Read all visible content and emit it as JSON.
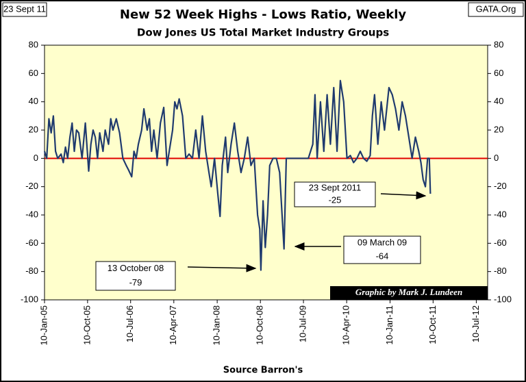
{
  "chart_data": {
    "type": "line",
    "corner_left": "23 Sept 11",
    "corner_right": "GATA.Org",
    "title": "New 52 Week Highs - Lows Ratio, Weekly",
    "subtitle": "Dow Jones US Total Market Industry Groups",
    "x_label": "Source Barron's",
    "credit": "Graphic by Mark J. Lundeen",
    "annotations": [
      {
        "lines": [
          "23 Sept 2011",
          "-25"
        ]
      },
      {
        "lines": [
          "09 March 09",
          "-64"
        ]
      },
      {
        "lines": [
          "13 October 08",
          "-79"
        ]
      }
    ],
    "xlim": [
      "2005-01-10",
      "2012-09-20"
    ],
    "xticks": [
      {
        "value": "2005-01-10",
        "label": "10-Jan-05"
      },
      {
        "value": "2005-10-10",
        "label": "10-Oct-05"
      },
      {
        "value": "2006-07-10",
        "label": "10-Jul-06"
      },
      {
        "value": "2007-04-10",
        "label": "10-Apr-07"
      },
      {
        "value": "2008-01-10",
        "label": "10-Jan-08"
      },
      {
        "value": "2008-10-10",
        "label": "10-Oct-08"
      },
      {
        "value": "2009-07-10",
        "label": "10-Jul-09"
      },
      {
        "value": "2010-04-10",
        "label": "10-Apr-10"
      },
      {
        "value": "2011-01-10",
        "label": "10-Jan-11"
      },
      {
        "value": "2011-10-10",
        "label": "10-Oct-11"
      },
      {
        "value": "2012-07-10",
        "label": "10-Jul-12"
      }
    ],
    "ylim": [
      -100,
      80
    ],
    "yticks": [
      -100,
      -80,
      -60,
      -40,
      -20,
      0,
      20,
      40,
      60,
      80
    ],
    "y2lim": [
      -100,
      80
    ],
    "y2ticks": [
      -100,
      -80,
      -60,
      -40,
      -20,
      0,
      20,
      40,
      60,
      80
    ],
    "zero_line_color": "#e00000",
    "background": "#ffffcc",
    "x": [
      "2005-01-10",
      "2005-01-24",
      "2005-02-07",
      "2005-02-21",
      "2005-03-07",
      "2005-03-21",
      "2005-04-04",
      "2005-04-25",
      "2005-05-09",
      "2005-05-23",
      "2005-06-06",
      "2005-06-20",
      "2005-07-04",
      "2005-07-18",
      "2005-08-01",
      "2005-08-15",
      "2005-09-05",
      "2005-09-26",
      "2005-10-17",
      "2005-10-31",
      "2005-11-14",
      "2005-11-28",
      "2005-12-12",
      "2005-12-26",
      "2006-01-16",
      "2006-01-30",
      "2006-02-20",
      "2006-03-06",
      "2006-03-20",
      "2006-04-10",
      "2006-05-01",
      "2006-05-22",
      "2006-06-12",
      "2006-06-26",
      "2006-07-17",
      "2006-07-31",
      "2006-08-14",
      "2006-08-28",
      "2006-09-18",
      "2006-10-02",
      "2006-10-23",
      "2006-11-06",
      "2006-11-20",
      "2006-12-04",
      "2006-12-25",
      "2007-01-15",
      "2007-02-05",
      "2007-02-26",
      "2007-03-12",
      "2007-04-02",
      "2007-04-16",
      "2007-04-30",
      "2007-05-14",
      "2007-06-04",
      "2007-06-25",
      "2007-07-16",
      "2007-08-06",
      "2007-08-27",
      "2007-09-17",
      "2007-10-08",
      "2007-10-29",
      "2007-11-19",
      "2007-12-03",
      "2007-12-24",
      "2008-01-14",
      "2008-01-28",
      "2008-02-11",
      "2008-03-03",
      "2008-03-17",
      "2008-04-07",
      "2008-04-28",
      "2008-05-19",
      "2008-06-09",
      "2008-06-30",
      "2008-07-21",
      "2008-08-11",
      "2008-09-01",
      "2008-09-22",
      "2008-10-06",
      "2008-10-13",
      "2008-10-27",
      "2008-11-10",
      "2008-11-24",
      "2008-12-08",
      "2008-12-29",
      "2009-01-19",
      "2009-02-09",
      "2009-03-09",
      "2009-03-23",
      "2009-05-04",
      "2009-07-06",
      "2009-08-10",
      "2009-09-07",
      "2009-09-21",
      "2009-10-05",
      "2009-10-26",
      "2009-11-16",
      "2009-12-07",
      "2009-12-28",
      "2010-01-18",
      "2010-02-08",
      "2010-03-01",
      "2010-03-22",
      "2010-04-12",
      "2010-05-03",
      "2010-05-24",
      "2010-06-14",
      "2010-07-05",
      "2010-07-26",
      "2010-08-16",
      "2010-09-06",
      "2010-09-20",
      "2010-10-04",
      "2010-10-25",
      "2010-11-15",
      "2010-12-06",
      "2011-01-03",
      "2011-01-24",
      "2011-02-14",
      "2011-03-07",
      "2011-03-28",
      "2011-04-18",
      "2011-05-09",
      "2011-05-30",
      "2011-06-20",
      "2011-07-11",
      "2011-07-25",
      "2011-08-08",
      "2011-08-22",
      "2011-09-05",
      "2011-09-16",
      "2011-09-23"
    ],
    "series": [
      {
        "name": "Ratio",
        "color": "#1f3a6e",
        "values": [
          5,
          0,
          28,
          18,
          30,
          5,
          0,
          3,
          -3,
          8,
          0,
          15,
          25,
          5,
          20,
          18,
          0,
          25,
          -9,
          10,
          20,
          15,
          0,
          18,
          5,
          20,
          10,
          28,
          20,
          28,
          18,
          0,
          -5,
          -8,
          -13,
          5,
          0,
          10,
          20,
          35,
          20,
          28,
          5,
          20,
          0,
          25,
          36,
          -5,
          5,
          20,
          40,
          35,
          42,
          30,
          0,
          3,
          0,
          20,
          0,
          30,
          5,
          -10,
          -20,
          0,
          -25,
          -41,
          -5,
          15,
          -10,
          10,
          25,
          5,
          -10,
          0,
          15,
          -5,
          0,
          -40,
          -50,
          -79,
          -30,
          -63,
          -40,
          -5,
          0,
          0,
          -10,
          -64,
          0,
          0,
          0,
          0,
          10,
          45,
          0,
          40,
          5,
          45,
          10,
          50,
          5,
          55,
          40,
          0,
          2,
          -3,
          0,
          5,
          0,
          -2,
          2,
          30,
          45,
          10,
          40,
          20,
          50,
          45,
          35,
          20,
          40,
          30,
          15,
          0,
          15,
          5,
          -3,
          -15,
          -20,
          0,
          0,
          -25
        ]
      }
    ]
  }
}
